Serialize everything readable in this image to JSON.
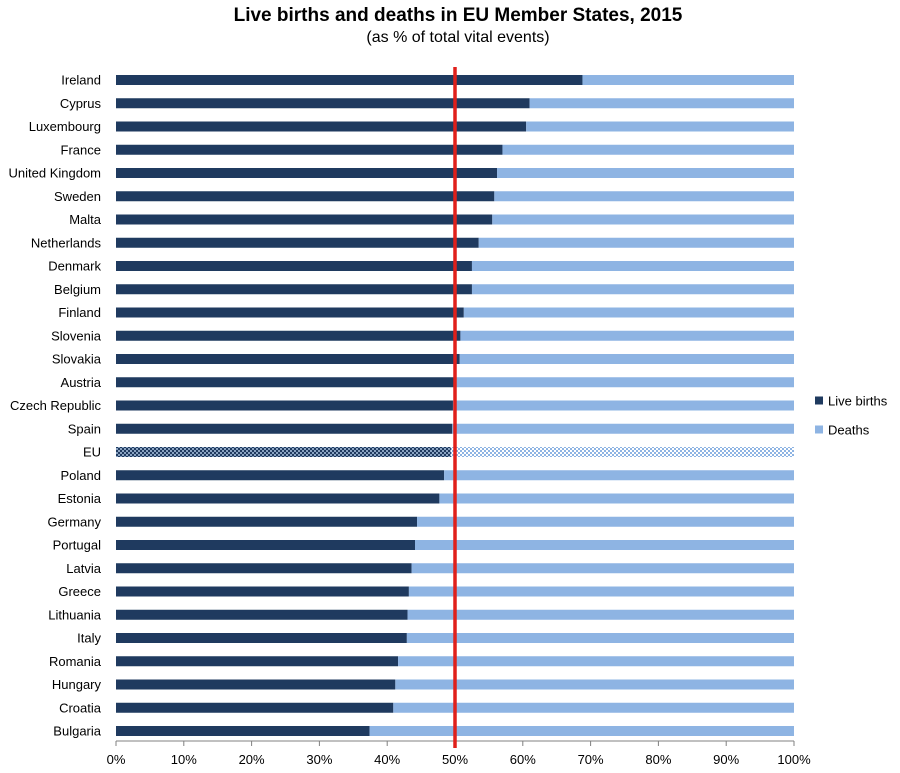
{
  "chart_data": {
    "type": "bar",
    "orientation": "horizontal",
    "stacked": "percent",
    "title": "Live births and deaths in EU Member States, 2015",
    "subtitle": "(as % of total vital events)",
    "categories": [
      "Ireland",
      "Cyprus",
      "Luxembourg",
      "France",
      "United Kingdom",
      "Sweden",
      "Malta",
      "Netherlands",
      "Denmark",
      "Belgium",
      "Finland",
      "Slovenia",
      "Slovakia",
      "Austria",
      "Czech Republic",
      "Spain",
      "EU",
      "Poland",
      "Estonia",
      "Germany",
      "Portugal",
      "Latvia",
      "Greece",
      "Lithuania",
      "Italy",
      "Romania",
      "Hungary",
      "Croatia",
      "Bulgaria"
    ],
    "highlight_category": "EU",
    "series": [
      {
        "name": "Live births",
        "color": "#1f3a5f",
        "values": [
          68.8,
          61.0,
          60.5,
          57.0,
          56.2,
          55.8,
          55.5,
          53.5,
          52.5,
          52.5,
          51.3,
          50.8,
          50.7,
          49.8,
          49.7,
          49.6,
          49.4,
          48.4,
          47.7,
          44.4,
          44.1,
          43.6,
          43.2,
          43.0,
          42.9,
          41.6,
          41.2,
          40.9,
          37.4
        ]
      },
      {
        "name": "Deaths",
        "color": "#8eb4e3",
        "values": [
          31.2,
          39.0,
          39.5,
          43.0,
          43.8,
          44.2,
          44.5,
          46.5,
          47.5,
          47.5,
          48.7,
          49.2,
          49.3,
          50.2,
          50.3,
          50.4,
          50.6,
          51.6,
          52.3,
          55.6,
          55.9,
          56.4,
          56.8,
          57.0,
          57.1,
          58.4,
          58.8,
          59.1,
          62.6
        ]
      }
    ],
    "x_ticks": [
      "0%",
      "10%",
      "20%",
      "30%",
      "40%",
      "50%",
      "60%",
      "70%",
      "80%",
      "90%",
      "100%"
    ],
    "xlim": [
      0,
      100
    ],
    "reference_line": {
      "value": 50,
      "color": "#e0201b"
    },
    "grid": false,
    "legend": {
      "placement": "right"
    }
  }
}
